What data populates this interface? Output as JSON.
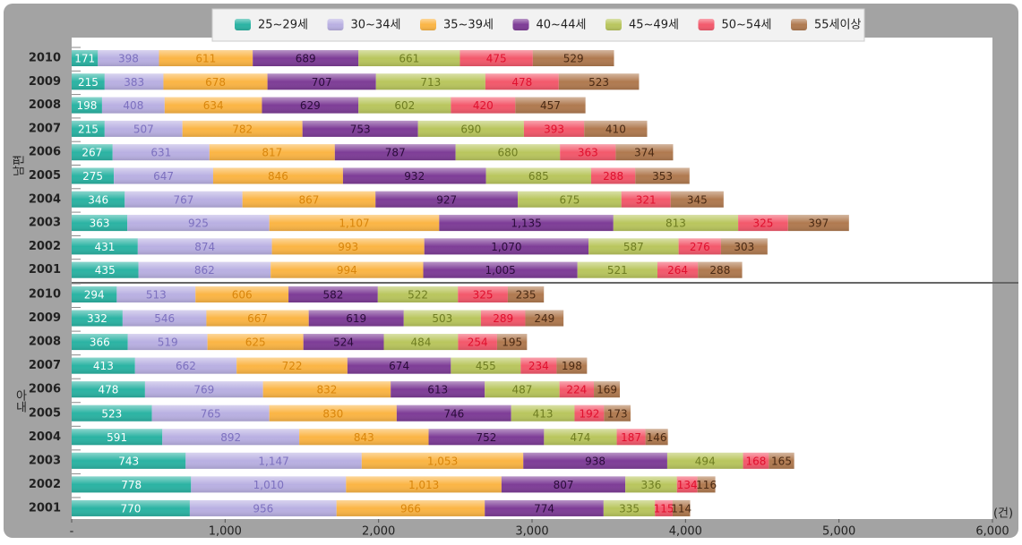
{
  "chart_data": {
    "type": "bar",
    "orientation": "horizontal",
    "stacked": true,
    "groups": [
      "남편",
      "아내"
    ],
    "categories": [
      "2010",
      "2009",
      "2008",
      "2007",
      "2006",
      "2005",
      "2004",
      "2003",
      "2002",
      "2001",
      "2010",
      "2009",
      "2008",
      "2007",
      "2006",
      "2005",
      "2004",
      "2003",
      "2002",
      "2001"
    ],
    "series": [
      {
        "name": "25~29세",
        "color": "#2bb3a3",
        "values": [
          171,
          215,
          198,
          215,
          267,
          275,
          346,
          363,
          431,
          435,
          294,
          332,
          366,
          413,
          478,
          523,
          591,
          743,
          778,
          770
        ]
      },
      {
        "name": "30~34세",
        "color": "#b9b0e2",
        "values": [
          398,
          383,
          408,
          507,
          631,
          647,
          767,
          925,
          874,
          862,
          513,
          546,
          519,
          662,
          769,
          765,
          892,
          1147,
          1010,
          956
        ],
        "value_labels": [
          "398",
          "383",
          "408",
          "507",
          "631",
          "647",
          "767",
          "925",
          "874",
          "862",
          "513",
          "546",
          "519",
          "662",
          "769",
          "765",
          "892",
          "1,147",
          "1,010",
          "956"
        ]
      },
      {
        "name": "35~39세",
        "color": "#fbb545",
        "values": [
          611,
          678,
          634,
          782,
          817,
          846,
          867,
          1107,
          993,
          994,
          606,
          667,
          625,
          722,
          832,
          830,
          843,
          1053,
          1013,
          966
        ],
        "value_labels": [
          "611",
          "678",
          "634",
          "782",
          "817",
          "846",
          "867",
          "1,107",
          "993",
          "994",
          "606",
          "667",
          "625",
          "722",
          "832",
          "830",
          "843",
          "1,053",
          "1,013",
          "966"
        ]
      },
      {
        "name": "40~44세",
        "color": "#7e3d97",
        "values": [
          689,
          707,
          629,
          753,
          787,
          932,
          927,
          1135,
          1070,
          1005,
          582,
          619,
          524,
          674,
          613,
          746,
          752,
          938,
          807,
          774
        ],
        "value_labels": [
          "689",
          "707",
          "629",
          "753",
          "787",
          "932",
          "927",
          "1,135",
          "1,070",
          "1,005",
          "582",
          "619",
          "524",
          "674",
          "613",
          "746",
          "752",
          "938",
          "807",
          "774"
        ]
      },
      {
        "name": "45~49세",
        "color": "#b9c65e",
        "values": [
          661,
          713,
          602,
          690,
          680,
          685,
          675,
          813,
          587,
          521,
          522,
          503,
          484,
          455,
          487,
          413,
          474,
          494,
          336,
          335
        ]
      },
      {
        "name": "50~54세",
        "color": "#f3596c",
        "values": [
          475,
          478,
          420,
          393,
          363,
          288,
          321,
          325,
          276,
          264,
          325,
          289,
          254,
          234,
          224,
          192,
          187,
          168,
          134,
          115
        ]
      },
      {
        "name": "55세이상",
        "color": "#b07a50",
        "values": [
          529,
          523,
          457,
          410,
          374,
          353,
          345,
          397,
          303,
          288,
          235,
          249,
          195,
          198,
          169,
          173,
          146,
          165,
          116,
          114
        ]
      }
    ],
    "xlim": [
      0,
      6000
    ],
    "xticks": [
      {
        "value": 0,
        "label": "-"
      },
      {
        "value": 1000,
        "label": "1,000"
      },
      {
        "value": 2000,
        "label": "2,000"
      },
      {
        "value": 3000,
        "label": "3,000"
      },
      {
        "value": 4000,
        "label": "4,000"
      },
      {
        "value": 5000,
        "label": "5,000"
      },
      {
        "value": 6000,
        "label": "6,000"
      }
    ],
    "x_unit": "(건)"
  }
}
